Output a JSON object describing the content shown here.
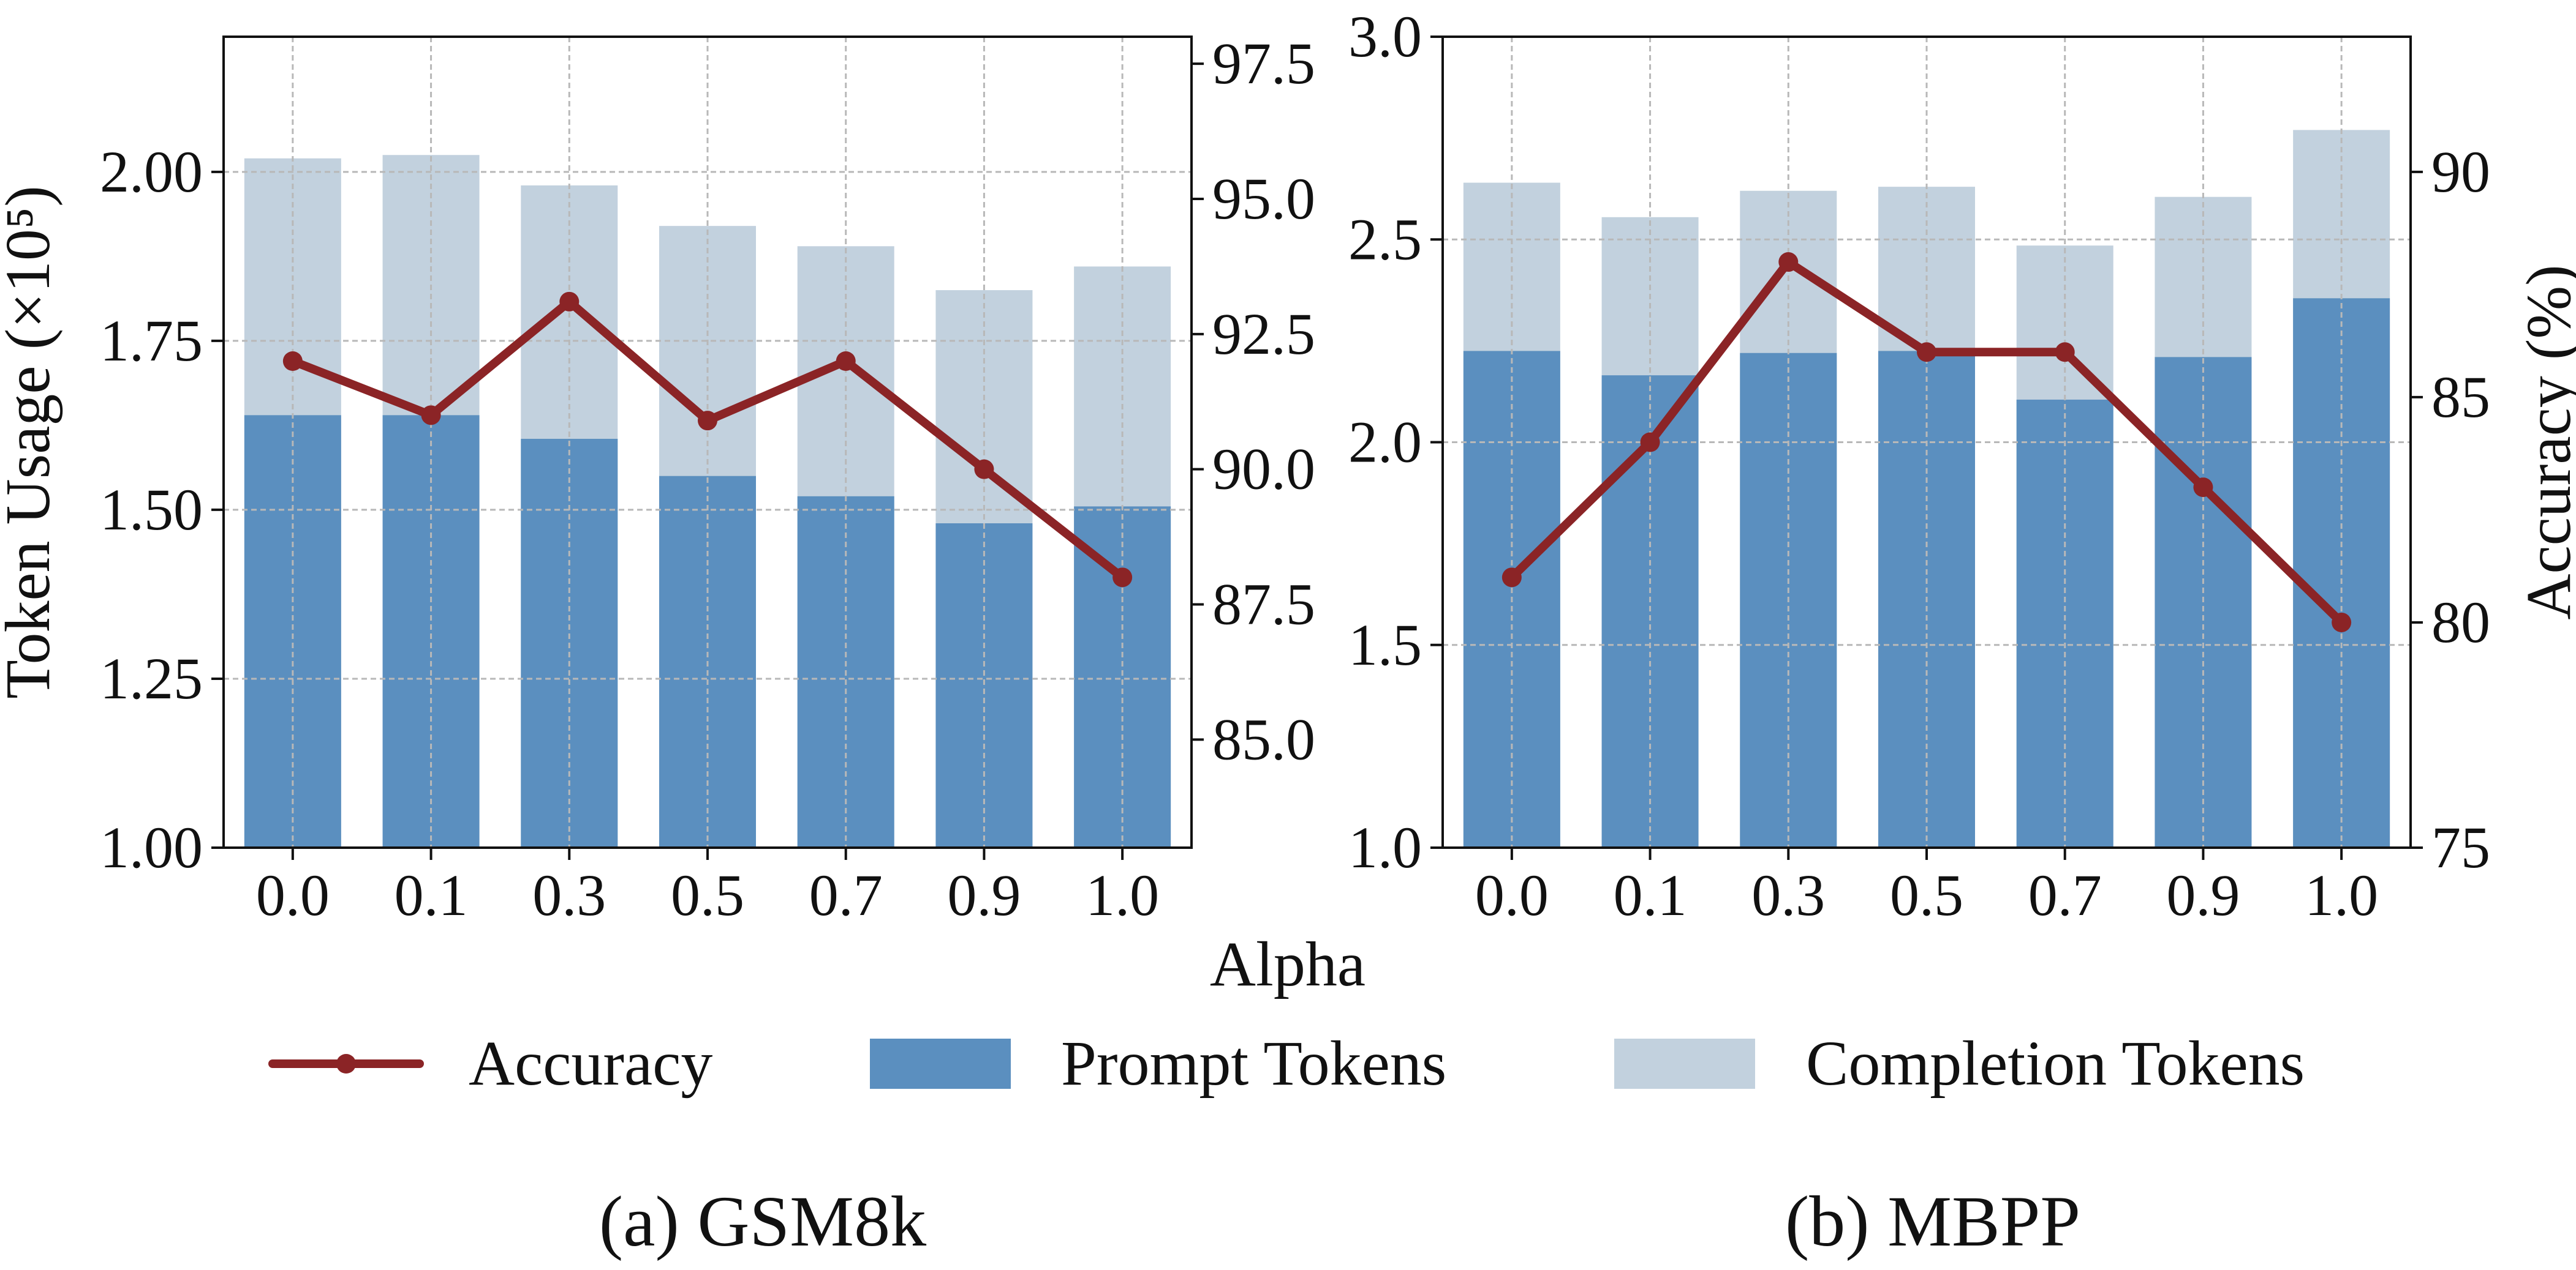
{
  "colors": {
    "prompt": "#5b8fbf",
    "completion": "#c2d1de",
    "accuracy": "#8b2426",
    "grid": "#b8b8b8",
    "axis": "#111111"
  },
  "x_label": "Alpha",
  "legend": {
    "accuracy": "Accuracy",
    "prompt": "Prompt Tokens",
    "completion": "Completion Tokens"
  },
  "captions": {
    "left": "(a) GSM8k",
    "right": "(b) MBPP"
  },
  "chart_data": [
    {
      "type": "bar",
      "title": "(a) GSM8k",
      "xlabel": "Alpha",
      "ylabel": "Token Usage (×10⁵)",
      "ylabel_right": "",
      "categories": [
        "0.0",
        "0.1",
        "0.3",
        "0.5",
        "0.7",
        "0.9",
        "1.0"
      ],
      "ylim": [
        1.0,
        2.2
      ],
      "yticks": [
        "1.00",
        "1.25",
        "1.50",
        "1.75",
        "2.00"
      ],
      "ylim_right": [
        83.0,
        98.0
      ],
      "yticks_right": [
        "85.0",
        "87.5",
        "90.0",
        "92.5",
        "95.0",
        "97.5"
      ],
      "series": [
        {
          "name": "Prompt Tokens",
          "kind": "bar",
          "axis": "left",
          "values": [
            1.64,
            1.64,
            1.605,
            1.55,
            1.52,
            1.48,
            1.505
          ]
        },
        {
          "name": "Completion Tokens",
          "kind": "bar",
          "axis": "left",
          "values": [
            2.02,
            2.025,
            1.98,
            1.92,
            1.89,
            1.825,
            1.86
          ]
        },
        {
          "name": "Accuracy",
          "kind": "line",
          "axis": "right",
          "values": [
            92.0,
            91.0,
            93.1,
            90.9,
            92.0,
            90.0,
            88.0
          ]
        }
      ],
      "grid": true
    },
    {
      "type": "bar",
      "title": "(b) MBPP",
      "xlabel": "Alpha",
      "ylabel": "",
      "ylabel_right": "Accuracy (%)",
      "categories": [
        "0.0",
        "0.1",
        "0.3",
        "0.5",
        "0.7",
        "0.9",
        "1.0"
      ],
      "ylim": [
        1.0,
        3.0
      ],
      "yticks": [
        "1.0",
        "1.5",
        "2.0",
        "2.5",
        "3.0"
      ],
      "ylim_right": [
        75,
        93
      ],
      "yticks_right": [
        "75",
        "80",
        "85",
        "90"
      ],
      "series": [
        {
          "name": "Prompt Tokens",
          "kind": "bar",
          "axis": "left",
          "values": [
            2.225,
            2.165,
            2.22,
            2.225,
            2.105,
            2.21,
            2.355
          ]
        },
        {
          "name": "Completion Tokens",
          "kind": "bar",
          "axis": "left",
          "values": [
            2.64,
            2.555,
            2.62,
            2.63,
            2.485,
            2.605,
            2.77
          ]
        },
        {
          "name": "Accuracy",
          "kind": "line",
          "axis": "right",
          "values": [
            81,
            84,
            88,
            86,
            86,
            83,
            80
          ]
        }
      ],
      "grid": true
    }
  ]
}
